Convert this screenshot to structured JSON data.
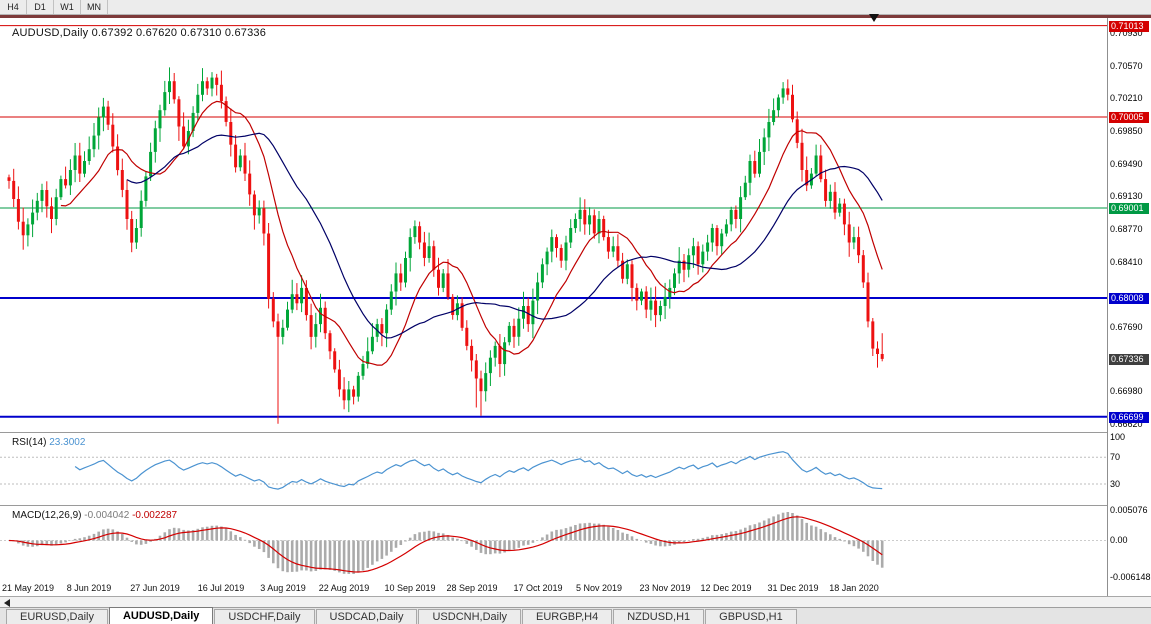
{
  "window": {
    "period_tabs": [
      "H4",
      "D1",
      "W1",
      "MN"
    ],
    "symbol_tabs": [
      {
        "label": "EURUSD,Daily",
        "active": false
      },
      {
        "label": "AUDUSD,Daily",
        "active": true
      },
      {
        "label": "USDCHF,Daily",
        "active": false
      },
      {
        "label": "USDCAD,Daily",
        "active": false
      },
      {
        "label": "USDCNH,Daily",
        "active": false
      },
      {
        "label": "EURGBP,H4",
        "active": false
      },
      {
        "label": "NZDUSD,H1",
        "active": false
      },
      {
        "label": "GBPUSD,H1",
        "active": false
      }
    ]
  },
  "chart_data": {
    "type": "candlestick",
    "symbol": "AUDUSD",
    "timeframe": "Daily",
    "title": "AUDUSD,Daily  0.67392 0.67620 0.67310 0.67336",
    "ohlc": {
      "open": "0.67392",
      "high": "0.67620",
      "low": "0.67310",
      "close": "0.67336"
    },
    "colors": {
      "up": "#00A638",
      "down": "#ED1111"
    },
    "closes": [
      0.693,
      0.691,
      0.6885,
      0.687,
      0.6882,
      0.6895,
      0.6908,
      0.692,
      0.6902,
      0.6888,
      0.6912,
      0.6932,
      0.6925,
      0.6942,
      0.6958,
      0.6938,
      0.6952,
      0.6965,
      0.698,
      0.7,
      0.7012,
      0.6992,
      0.6968,
      0.6942,
      0.692,
      0.6888,
      0.6862,
      0.6878,
      0.6908,
      0.6935,
      0.6962,
      0.6988,
      0.7008,
      0.7028,
      0.704,
      0.702,
      0.699,
      0.6968,
      0.6985,
      0.7005,
      0.7025,
      0.704,
      0.7032,
      0.7044,
      0.7036,
      0.7018,
      0.6995,
      0.697,
      0.6945,
      0.6958,
      0.6938,
      0.6915,
      0.6892,
      0.69,
      0.6872,
      0.68,
      0.6775,
      0.6758,
      0.6768,
      0.6788,
      0.6805,
      0.6795,
      0.6812,
      0.6782,
      0.6758,
      0.6772,
      0.679,
      0.6762,
      0.6742,
      0.6722,
      0.67,
      0.6688,
      0.67,
      0.6692,
      0.6715,
      0.6728,
      0.6742,
      0.6758,
      0.6772,
      0.6762,
      0.6788,
      0.6808,
      0.6828,
      0.6818,
      0.6845,
      0.6868,
      0.688,
      0.6862,
      0.6845,
      0.6858,
      0.6832,
      0.6812,
      0.6828,
      0.6802,
      0.6782,
      0.6795,
      0.6768,
      0.6748,
      0.6732,
      0.6712,
      0.6698,
      0.6718,
      0.6735,
      0.6748,
      0.6728,
      0.6752,
      0.677,
      0.6758,
      0.6778,
      0.6792,
      0.6772,
      0.6798,
      0.6818,
      0.6838,
      0.6852,
      0.6868,
      0.6856,
      0.6842,
      0.6862,
      0.6878,
      0.6888,
      0.6898,
      0.6882,
      0.6892,
      0.6872,
      0.6888,
      0.6868,
      0.6852,
      0.6858,
      0.6842,
      0.6822,
      0.6838,
      0.6812,
      0.6798,
      0.6808,
      0.6788,
      0.6798,
      0.6782,
      0.6792,
      0.6802,
      0.6812,
      0.6828,
      0.6842,
      0.6832,
      0.6848,
      0.6858,
      0.6838,
      0.6852,
      0.6862,
      0.6878,
      0.6858,
      0.6872,
      0.6882,
      0.6898,
      0.6888,
      0.6912,
      0.6928,
      0.6952,
      0.6938,
      0.6962,
      0.6978,
      0.6995,
      0.7008,
      0.7022,
      0.7032,
      0.7025,
      0.6998,
      0.6972,
      0.6942,
      0.6925,
      0.6938,
      0.6958,
      0.6932,
      0.6908,
      0.6918,
      0.6895,
      0.6905,
      0.6882,
      0.6862,
      0.6868,
      0.6848,
      0.6818,
      0.6775,
      0.6745,
      0.6739,
      0.67336
    ],
    "wick_overrides": {
      "43": {
        "high": 0.705
      },
      "57": {
        "low": 0.6662
      },
      "71": {
        "low": 0.6678
      },
      "99": {
        "low": 0.668
      },
      "100": {
        "low": 0.6671
      },
      "164": {
        "high": 0.7039
      },
      "185": {
        "high": 0.6762,
        "low": 0.6731
      }
    },
    "x_labels": [
      {
        "text": "21 May 2019",
        "bar": 4
      },
      {
        "text": "8 Jun 2019",
        "bar": 17
      },
      {
        "text": "27 Jun 2019",
        "bar": 31
      },
      {
        "text": "16 Jul 2019",
        "bar": 45
      },
      {
        "text": "3 Aug 2019",
        "bar": 58
      },
      {
        "text": "22 Aug 2019",
        "bar": 71
      },
      {
        "text": "10 Sep 2019",
        "bar": 85
      },
      {
        "text": "28 Sep 2019",
        "bar": 98
      },
      {
        "text": "17 Oct 2019",
        "bar": 112
      },
      {
        "text": "5 Nov 2019",
        "bar": 125
      },
      {
        "text": "23 Nov 2019",
        "bar": 139
      },
      {
        "text": "12 Dec 2019",
        "bar": 152
      },
      {
        "text": "31 Dec 2019",
        "bar": 166
      },
      {
        "text": "18 Jan 2020",
        "bar": 179
      }
    ],
    "y_axis": {
      "price_max": 0.71097,
      "price_min": 0.6653,
      "ticks": [
        0.7093,
        0.7057,
        0.7021,
        0.6985,
        0.6949,
        0.6913,
        0.6877,
        0.6841,
        0.6769,
        0.6698,
        0.6662
      ]
    },
    "h_lines": [
      {
        "value": 0.71013,
        "color": "#d40000",
        "width": 1
      },
      {
        "value": 0.70005,
        "color": "#d40000",
        "width": 1
      },
      {
        "value": 0.69001,
        "color": "#009944",
        "width": 1
      },
      {
        "value": 0.68008,
        "color": "#0000cc",
        "width": 2
      },
      {
        "value": 0.66699,
        "color": "#0000cc",
        "width": 2
      }
    ],
    "current_price": {
      "value": 0.67336,
      "box_bg": "#3f3f3f"
    },
    "ma_lines": [
      {
        "period": 12,
        "color": "#c00000"
      },
      {
        "period": 26,
        "color": "#000066"
      }
    ],
    "indicators": {
      "rsi": {
        "name": "RSI(14)",
        "value": "23.3002",
        "period": 14,
        "color": "#4b93d1",
        "levels": [
          70,
          30
        ],
        "axis_labels": [
          "100",
          "70",
          "30"
        ],
        "display_range": [
          0,
          105
        ]
      },
      "macd": {
        "name": "MACD(12,26,9)",
        "value_main": "-0.004042",
        "value_signal": "-0.002287",
        "fast": 12,
        "slow": 26,
        "signal": 9,
        "hist_color": "#ababab",
        "signal_color": "#d40000",
        "axis_labels": [
          {
            "text": "0.005076",
            "value": 0.005076
          },
          {
            "text": "0.00",
            "value": 0
          },
          {
            "text": "-0.006148",
            "value": -0.006148
          }
        ]
      }
    }
  }
}
